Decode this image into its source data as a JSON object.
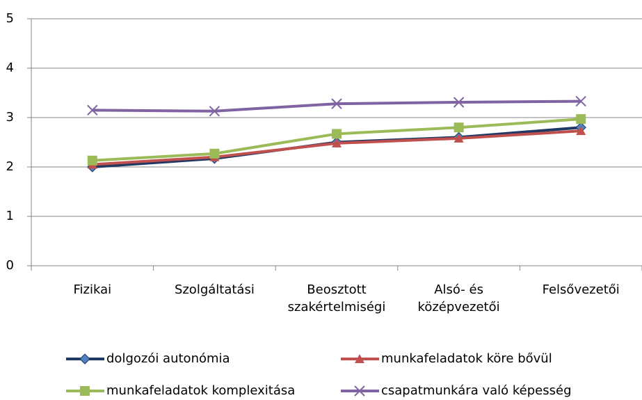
{
  "chart_data": {
    "type": "line",
    "categories": [
      "Fizikai",
      "Szolgáltatási",
      "Beosztott szakértelmiségi",
      "Alsó- és középvezetői",
      "Felsővezetői"
    ],
    "series": [
      {
        "name": "dolgozói autonómia",
        "color": "#1f3864",
        "marker_color": "#4f81bd",
        "marker": "diamond",
        "values": [
          2.0,
          2.17,
          2.5,
          2.6,
          2.8
        ]
      },
      {
        "name": "munkafeladatok köre bővül",
        "color": "#c0504d",
        "marker_color": "#c0504d",
        "marker": "triangle",
        "values": [
          2.05,
          2.2,
          2.48,
          2.58,
          2.73
        ]
      },
      {
        "name": "munkafeladatok komplexitása",
        "color": "#9bbb59",
        "marker_color": "#9bbb59",
        "marker": "square",
        "values": [
          2.13,
          2.27,
          2.67,
          2.8,
          2.97
        ]
      },
      {
        "name": "csapatmunkára való képesség",
        "color": "#8064a2",
        "marker_color": "#8064a2",
        "marker": "x",
        "values": [
          3.15,
          3.13,
          3.28,
          3.31,
          3.33
        ]
      }
    ],
    "ylim": [
      0,
      5
    ],
    "yticks": [
      0,
      1,
      2,
      3,
      4,
      5
    ],
    "grid": true,
    "legend": "bottom"
  }
}
